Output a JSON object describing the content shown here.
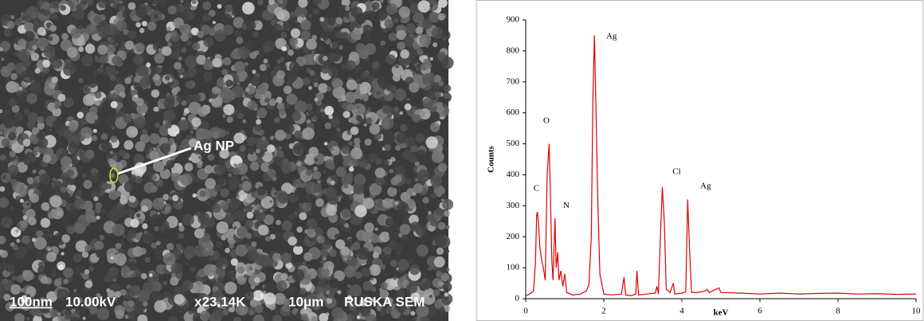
{
  "sem_image": {
    "pointer_label": "Ag NP",
    "scale_bar": "100nm",
    "voltage": "10.00kV",
    "magnification": "x23.14K",
    "field": "10μm",
    "instrument": "RUSKA SEM"
  },
  "chart_data": {
    "type": "line",
    "xlabel": "keV",
    "ylabel": "Counts",
    "color": "#e00000",
    "x": [
      0,
      0.1,
      0.2,
      0.25,
      0.28,
      0.3,
      0.33,
      0.36,
      0.4,
      0.45,
      0.5,
      0.55,
      0.58,
      0.6,
      0.63,
      0.67,
      0.7,
      0.75,
      0.78,
      0.82,
      0.85,
      0.9,
      0.95,
      1.0,
      1.05,
      1.2,
      1.4,
      1.55,
      1.62,
      1.68,
      1.72,
      1.76,
      1.8,
      1.85,
      1.9,
      2.0,
      2.2,
      2.45,
      2.52,
      2.56,
      2.7,
      2.82,
      2.85,
      2.89,
      3.1,
      3.32,
      3.36,
      3.4,
      3.45,
      3.5,
      3.55,
      3.6,
      3.7,
      3.78,
      3.82,
      4.0,
      4.1,
      4.15,
      4.2,
      4.25,
      4.4,
      4.6,
      4.65,
      4.7,
      4.95,
      5.0,
      5.5,
      6,
      6.5,
      7,
      7.5,
      8,
      8.5,
      9,
      9.5,
      10
    ],
    "values": [
      10,
      15,
      25,
      120,
      270,
      280,
      240,
      170,
      130,
      100,
      60,
      400,
      460,
      500,
      350,
      120,
      60,
      260,
      100,
      150,
      60,
      90,
      40,
      80,
      20,
      12,
      15,
      25,
      45,
      200,
      640,
      850,
      610,
      300,
      80,
      15,
      12,
      15,
      70,
      12,
      10,
      15,
      90,
      12,
      15,
      18,
      40,
      15,
      200,
      360,
      250,
      30,
      20,
      50,
      15,
      18,
      22,
      320,
      150,
      20,
      20,
      25,
      30,
      20,
      35,
      20,
      18,
      15,
      18,
      15,
      17,
      18,
      15,
      16,
      14,
      15
    ],
    "xlim": [
      0,
      10
    ],
    "ylim": [
      0,
      900
    ],
    "xticks": [
      0,
      2,
      4,
      6,
      8,
      10
    ],
    "yticks": [
      0,
      100,
      200,
      300,
      400,
      500,
      600,
      700,
      800,
      900
    ],
    "annotations": [
      {
        "text": "C",
        "x": 0.2,
        "y": 355
      },
      {
        "text": "O",
        "x": 0.45,
        "y": 573
      },
      {
        "text": "N",
        "x": 0.96,
        "y": 300
      },
      {
        "text": "Ag",
        "x": 2.06,
        "y": 846
      },
      {
        "text": "Cl",
        "x": 3.76,
        "y": 409
      },
      {
        "text": "Ag",
        "x": 4.47,
        "y": 363
      }
    ]
  }
}
